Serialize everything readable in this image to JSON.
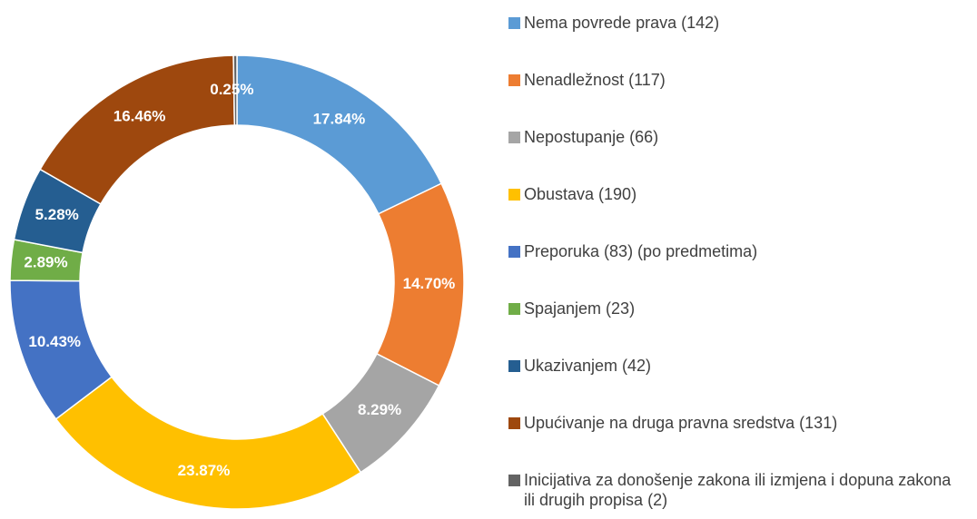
{
  "chart_data": {
    "type": "donut",
    "categories": [
      "Nema povrede prava (142)",
      "Nenadležnost (117)",
      "Nepostupanje (66)",
      "Obustava (190)",
      "Preporuka (83) (po predmetima)",
      "Spajanjem (23)",
      "Ukazivanjem (42)",
      "Upućivanje na druga pravna sredstva  (131)",
      "Inicijativa za donošenje zakona ili izmjena i dopuna zakona ili drugih propisa (2)"
    ],
    "values": [
      17.84,
      14.7,
      8.29,
      23.87,
      10.43,
      2.89,
      5.28,
      16.46,
      0.25
    ],
    "value_labels": [
      "17.84%",
      "14.70%",
      "8.29%",
      "23.87%",
      "10.43%",
      "2.89%",
      "5.28%",
      "16.46%",
      "0.25%"
    ],
    "colors": [
      "#5b9bd5",
      "#ed7d31",
      "#a5a5a5",
      "#ffc000",
      "#4472c4",
      "#70ad47",
      "#255e91",
      "#9e480e",
      "#636363"
    ],
    "legend": "right"
  }
}
